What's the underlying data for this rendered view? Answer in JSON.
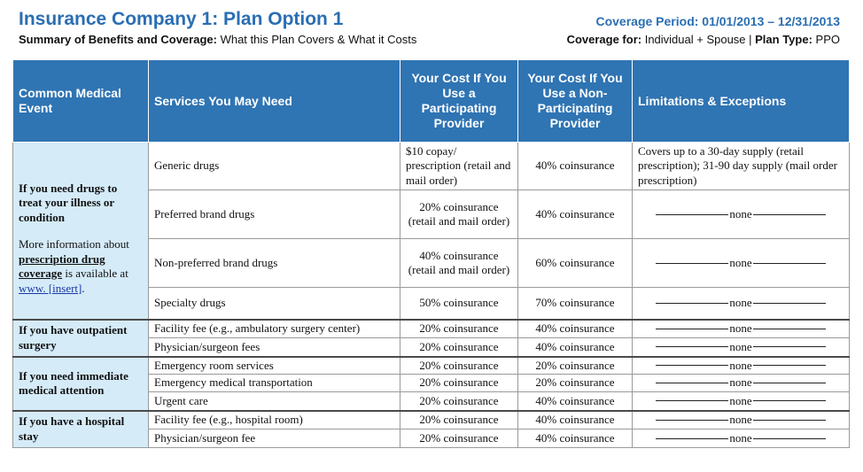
{
  "header": {
    "title": "Insurance Company 1: Plan Option 1",
    "subtitle_bold": "Summary of Benefits and Coverage:",
    "subtitle_rest": " What this Plan Covers & What it Costs",
    "period": "Coverage Period: 01/01/2013 – 12/31/2013",
    "coverage_for_label": "Coverage for:",
    "coverage_for_value": " Individual + Spouse | ",
    "plan_type_label": "Plan Type:",
    "plan_type_value": " PPO"
  },
  "columns": {
    "event": "Common Medical Event",
    "services": "Services You May Need",
    "participating": "Your Cost If You Use a Participating Provider",
    "non_participating": "Your Cost If You Use a Non-Participating Provider",
    "limitations": "Limitations & Exceptions"
  },
  "events": {
    "drugs": {
      "title": "If you need drugs to treat your illness or condition",
      "more_prefix": "More information about ",
      "more_link": "prescription drug coverage",
      "more_mid": " is available at ",
      "more_url": "www. [insert]",
      "more_suffix": "."
    },
    "outpatient": {
      "title": "If you have outpatient surgery"
    },
    "immediate": {
      "title": "If you need immediate medical attention"
    },
    "hospital": {
      "title": "If you have a hospital stay"
    }
  },
  "rows": [
    {
      "service": "Generic drugs",
      "participating": "$10 copay/ prescription (retail and mail order)",
      "non_participating": "40% coinsurance",
      "limitation": "Covers up to a 30-day supply (retail prescription); 31-90 day supply (mail order prescription)"
    },
    {
      "service": "Preferred brand drugs",
      "participating": "20% coinsurance (retail and mail order)",
      "non_participating": "40% coinsurance",
      "limitation": "none"
    },
    {
      "service": "Non-preferred brand drugs",
      "participating": "40% coinsurance (retail and mail order)",
      "non_participating": "60% coinsurance",
      "limitation": "none"
    },
    {
      "service": "Specialty drugs",
      "participating": "50% coinsurance",
      "non_participating": "70% coinsurance",
      "limitation": "none"
    },
    {
      "service": "Facility fee (e.g., ambulatory surgery center)",
      "participating": "20% coinsurance",
      "non_participating": "40% coinsurance",
      "limitation": "none"
    },
    {
      "service": "Physician/surgeon fees",
      "participating": "20% coinsurance",
      "non_participating": "40% coinsurance",
      "limitation": "none"
    },
    {
      "service": "Emergency room services",
      "participating": "20% coinsurance",
      "non_participating": "20% coinsurance",
      "limitation": "none"
    },
    {
      "service": "Emergency medical transportation",
      "participating": "20% coinsurance",
      "non_participating": "20% coinsurance",
      "limitation": "none"
    },
    {
      "service": "Urgent care",
      "participating": "20% coinsurance",
      "non_participating": "40% coinsurance",
      "limitation": "none"
    },
    {
      "service": "Facility fee (e.g., hospital room)",
      "participating": "20% coinsurance",
      "non_participating": "40% coinsurance",
      "limitation": "none"
    },
    {
      "service": "Physician/surgeon fee",
      "participating": "20% coinsurance",
      "non_participating": "40% coinsurance",
      "limitation": "none"
    }
  ],
  "colors": {
    "header_blue": "#2f74b3",
    "title_blue": "#2a6eb3",
    "event_bg": "#d5ebf8"
  }
}
